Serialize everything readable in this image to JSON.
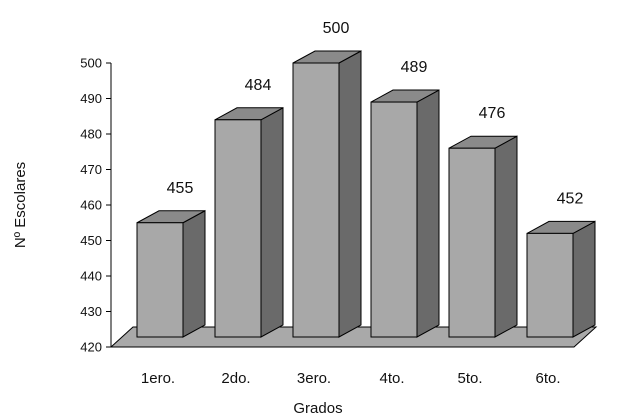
{
  "chart_data": {
    "type": "bar",
    "categories": [
      "1ero.",
      "2do.",
      "3ero.",
      "4to.",
      "5to.",
      "6to."
    ],
    "values": [
      455,
      484,
      500,
      489,
      476,
      452
    ],
    "data_labels": [
      "455",
      "484",
      "500",
      "489",
      "476",
      "452"
    ],
    "xlabel": "Grados",
    "ylabel": "Nº Escolares",
    "ylim": [
      420,
      500
    ],
    "yticks": [
      420,
      430,
      440,
      450,
      460,
      470,
      480,
      490,
      500
    ],
    "ytick_labels": [
      "420",
      "430",
      "440",
      "450",
      "460",
      "470",
      "480",
      "490",
      "500"
    ],
    "style": "3d-bar",
    "grid": false,
    "colors": {
      "bar_front": "#a8a8a8",
      "bar_side": "#6a6a6a",
      "bar_top": "#8a8a8a",
      "floor": "#a9a9a9"
    }
  }
}
